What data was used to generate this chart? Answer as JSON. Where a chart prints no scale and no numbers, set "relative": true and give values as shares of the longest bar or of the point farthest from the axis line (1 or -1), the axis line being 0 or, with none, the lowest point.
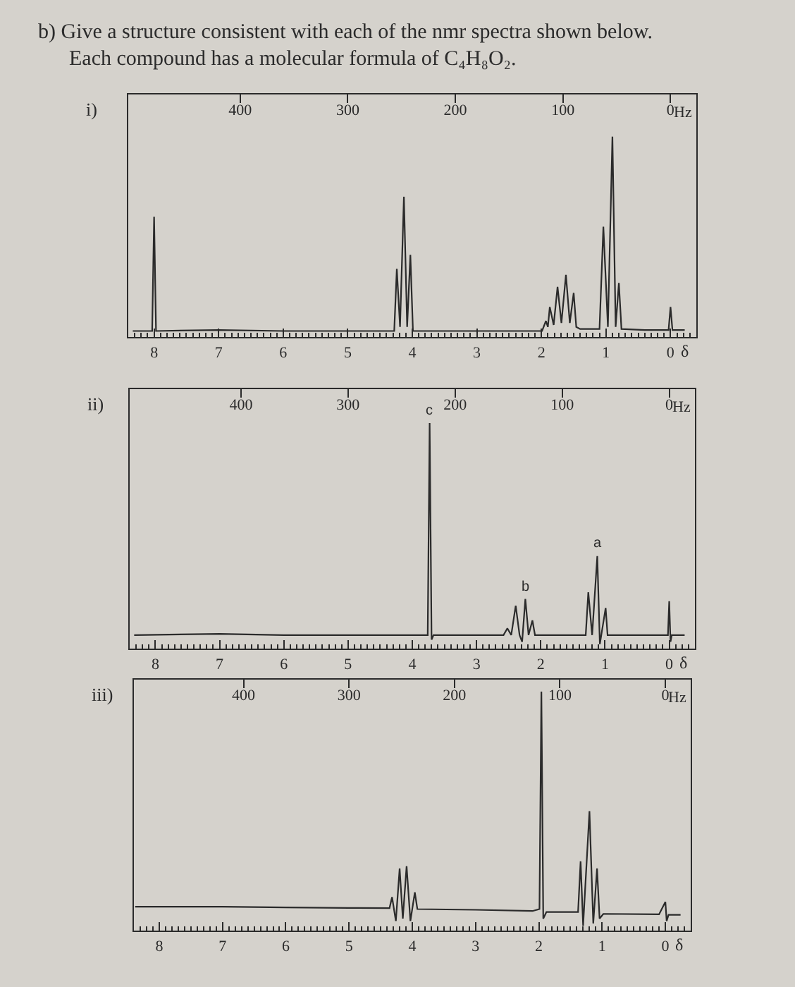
{
  "chart_data": [
    {
      "type": "other",
      "title": "b) Give a structure consistent with each of the nmr spectra shown below.",
      "subtitle": "Each compound has a molecular formula of C₄H₈O₂."
    },
    {
      "type": "line",
      "title": "i)",
      "xlabel": "δ",
      "x2label": "Hz",
      "relative": true,
      "xlim": [
        8.4,
        -0.4
      ],
      "xticks": [
        8,
        7,
        6,
        5,
        4,
        3,
        2,
        1,
        0,
        {
          "value": 8.3,
          "label": null
        },
        {
          "value": 8.2,
          "label": null
        },
        {
          "value": 8.1,
          "label": null
        },
        {
          "value": 7.9,
          "label": null
        },
        {
          "value": 7.8,
          "label": null
        },
        {
          "value": 7.7,
          "label": null
        },
        {
          "value": 7.6,
          "label": null
        },
        {
          "value": 7.5,
          "label": null
        },
        {
          "value": 7.4,
          "label": null
        },
        {
          "value": 7.3,
          "label": null
        },
        {
          "value": 7.2,
          "label": null
        },
        {
          "value": 7.1,
          "label": null
        },
        {
          "value": 6.9,
          "label": null
        },
        {
          "value": 6.8,
          "label": null
        },
        {
          "value": 6.7,
          "label": null
        },
        {
          "value": 6.6,
          "label": null
        },
        {
          "value": 6.5,
          "label": null
        },
        {
          "value": 6.4,
          "label": null
        },
        {
          "value": 6.3,
          "label": null
        },
        {
          "value": 6.2,
          "label": null
        },
        {
          "value": 6.1,
          "label": null
        },
        {
          "value": 5.9,
          "label": null
        },
        {
          "value": 5.8,
          "label": null
        },
        {
          "value": 5.7,
          "label": null
        },
        {
          "value": 5.6,
          "label": null
        },
        {
          "value": 5.5,
          "label": null
        },
        {
          "value": 5.4,
          "label": null
        },
        {
          "value": 5.3,
          "label": null
        },
        {
          "value": 5.2,
          "label": null
        },
        {
          "value": 5.1,
          "label": null
        },
        {
          "value": 4.9,
          "label": null
        },
        {
          "value": 4.8,
          "label": null
        },
        {
          "value": 4.7,
          "label": null
        },
        {
          "value": 4.6,
          "label": null
        },
        {
          "value": 4.5,
          "label": null
        },
        {
          "value": 4.4,
          "label": null
        },
        {
          "value": 4.3,
          "label": null
        },
        {
          "value": 4.2,
          "label": null
        },
        {
          "value": 4.1,
          "label": null
        },
        {
          "value": 3.9,
          "label": null
        },
        {
          "value": 3.8,
          "label": null
        },
        {
          "value": 3.7,
          "label": null
        },
        {
          "value": 3.6,
          "label": null
        },
        {
          "value": 3.5,
          "label": null
        },
        {
          "value": 3.4,
          "label": null
        },
        {
          "value": 3.3,
          "label": null
        },
        {
          "value": 3.2,
          "label": null
        },
        {
          "value": 3.1,
          "label": null
        },
        {
          "value": 2.9,
          "label": null
        },
        {
          "value": 2.8,
          "label": null
        },
        {
          "value": 2.7,
          "label": null
        },
        {
          "value": 2.6,
          "label": null
        },
        {
          "value": 2.5,
          "label": null
        },
        {
          "value": 2.4,
          "label": null
        },
        {
          "value": 2.3,
          "label": null
        },
        {
          "value": 2.2,
          "label": null
        },
        {
          "value": 2.1,
          "label": null
        },
        {
          "value": 1.9,
          "label": null
        },
        {
          "value": 1.8,
          "label": null
        },
        {
          "value": 1.7,
          "label": null
        },
        {
          "value": 1.6,
          "label": null
        },
        {
          "value": 1.5,
          "label": null
        },
        {
          "value": 1.4,
          "label": null
        },
        {
          "value": 1.3,
          "label": null
        },
        {
          "value": 1.2,
          "label": null
        },
        {
          "value": 1.1,
          "label": null
        },
        {
          "value": 0.9,
          "label": null
        },
        {
          "value": 0.8,
          "label": null
        },
        {
          "value": 0.7,
          "label": null
        },
        {
          "value": 0.6,
          "label": null
        },
        {
          "value": 0.5,
          "label": null
        },
        {
          "value": 0.4,
          "label": null
        },
        {
          "value": 0.3,
          "label": null
        },
        {
          "value": 0.2,
          "label": null
        },
        {
          "value": 0.1,
          "label": null
        },
        {
          "value": -0.1,
          "label": null
        },
        {
          "value": -0.2,
          "label": null
        },
        {
          "value": -0.3,
          "label": null
        }
      ],
      "x2lim": [
        504,
        -24
      ],
      "x2ticks": [
        400,
        300,
        200,
        100,
        0
      ],
      "line_style": "solid",
      "series": [
        {
          "color": "#2b2b2b",
          "x": [
            8.33,
            8.03,
            8.0,
            7.97,
            7.0,
            6.0,
            5.0,
            4.28,
            4.24,
            4.19,
            4.13,
            4.08,
            4.03,
            3.99,
            3.0,
            1.99,
            1.93,
            1.9,
            1.87,
            1.81,
            1.75,
            1.69,
            1.62,
            1.56,
            1.5,
            1.46,
            1.4,
            1.1,
            1.04,
            0.97,
            0.9,
            0.85,
            0.8,
            0.76,
            0.4,
            0.03,
            0.0,
            -0.03,
            -0.22
          ],
          "values": [
            0.03,
            0.03,
            0.6,
            0.03,
            0.035,
            0.03,
            0.03,
            0.03,
            0.34,
            0.05,
            0.7,
            0.05,
            0.41,
            0.03,
            0.03,
            0.03,
            0.08,
            0.05,
            0.15,
            0.06,
            0.25,
            0.07,
            0.31,
            0.07,
            0.22,
            0.05,
            0.04,
            0.04,
            0.55,
            0.05,
            1.0,
            0.05,
            0.27,
            0.04,
            0.035,
            0.035,
            0.15,
            0.035,
            0.035
          ]
        }
      ]
    },
    {
      "type": "line",
      "title": "ii)",
      "xlabel": "δ",
      "x2label": "Hz",
      "relative": true,
      "xlim": [
        8.4,
        -0.4
      ],
      "xticks": [
        8,
        7,
        6,
        5,
        4,
        3,
        2,
        1,
        0,
        {
          "value": 8.3,
          "label": null
        },
        {
          "value": 8.2,
          "label": null
        },
        {
          "value": 8.1,
          "label": null
        },
        {
          "value": 7.9,
          "label": null
        },
        {
          "value": 7.8,
          "label": null
        },
        {
          "value": 7.7,
          "label": null
        },
        {
          "value": 7.6,
          "label": null
        },
        {
          "value": 7.5,
          "label": null
        },
        {
          "value": 7.4,
          "label": null
        },
        {
          "value": 7.3,
          "label": null
        },
        {
          "value": 7.2,
          "label": null
        },
        {
          "value": 7.1,
          "label": null
        },
        {
          "value": 6.9,
          "label": null
        },
        {
          "value": 6.8,
          "label": null
        },
        {
          "value": 6.7,
          "label": null
        },
        {
          "value": 6.6,
          "label": null
        },
        {
          "value": 6.5,
          "label": null
        },
        {
          "value": 6.4,
          "label": null
        },
        {
          "value": 6.3,
          "label": null
        },
        {
          "value": 6.2,
          "label": null
        },
        {
          "value": 6.1,
          "label": null
        },
        {
          "value": 5.9,
          "label": null
        },
        {
          "value": 5.8,
          "label": null
        },
        {
          "value": 5.7,
          "label": null
        },
        {
          "value": 5.6,
          "label": null
        },
        {
          "value": 5.5,
          "label": null
        },
        {
          "value": 5.4,
          "label": null
        },
        {
          "value": 5.3,
          "label": null
        },
        {
          "value": 5.2,
          "label": null
        },
        {
          "value": 5.1,
          "label": null
        },
        {
          "value": 4.9,
          "label": null
        },
        {
          "value": 4.8,
          "label": null
        },
        {
          "value": 4.7,
          "label": null
        },
        {
          "value": 4.6,
          "label": null
        },
        {
          "value": 4.5,
          "label": null
        },
        {
          "value": 4.4,
          "label": null
        },
        {
          "value": 4.3,
          "label": null
        },
        {
          "value": 4.2,
          "label": null
        },
        {
          "value": 4.1,
          "label": null
        },
        {
          "value": 3.9,
          "label": null
        },
        {
          "value": 3.8,
          "label": null
        },
        {
          "value": 3.7,
          "label": null
        },
        {
          "value": 3.6,
          "label": null
        },
        {
          "value": 3.5,
          "label": null
        },
        {
          "value": 3.4,
          "label": null
        },
        {
          "value": 3.3,
          "label": null
        },
        {
          "value": 3.2,
          "label": null
        },
        {
          "value": 3.1,
          "label": null
        },
        {
          "value": 2.9,
          "label": null
        },
        {
          "value": 2.8,
          "label": null
        },
        {
          "value": 2.7,
          "label": null
        },
        {
          "value": 2.6,
          "label": null
        },
        {
          "value": 2.5,
          "label": null
        },
        {
          "value": 2.4,
          "label": null
        },
        {
          "value": 2.3,
          "label": null
        },
        {
          "value": 2.2,
          "label": null
        },
        {
          "value": 2.1,
          "label": null
        },
        {
          "value": 1.9,
          "label": null
        },
        {
          "value": 1.8,
          "label": null
        },
        {
          "value": 1.7,
          "label": null
        },
        {
          "value": 1.6,
          "label": null
        },
        {
          "value": 1.5,
          "label": null
        },
        {
          "value": 1.4,
          "label": null
        },
        {
          "value": 1.3,
          "label": null
        },
        {
          "value": 1.2,
          "label": null
        },
        {
          "value": 1.1,
          "label": null
        },
        {
          "value": 0.9,
          "label": null
        },
        {
          "value": 0.8,
          "label": null
        },
        {
          "value": 0.7,
          "label": null
        },
        {
          "value": 0.6,
          "label": null
        },
        {
          "value": 0.5,
          "label": null
        },
        {
          "value": 0.4,
          "label": null
        },
        {
          "value": 0.3,
          "label": null
        },
        {
          "value": 0.2,
          "label": null
        },
        {
          "value": 0.1,
          "label": null
        },
        {
          "value": -0.1,
          "label": null
        },
        {
          "value": -0.2,
          "label": null
        },
        {
          "value": -0.3,
          "label": null
        }
      ],
      "x2lim": [
        504,
        -24
      ],
      "x2ticks": [
        400,
        300,
        200,
        100,
        0
      ],
      "line_style": "solid",
      "annotations": [
        {
          "text": "c",
          "x": 3.73,
          "y": 1.0
        },
        {
          "text": "b",
          "x": 2.24,
          "y": 0.22
        },
        {
          "text": "a",
          "x": 1.12,
          "y": 0.41
        }
      ],
      "series": [
        {
          "color": "#2b2b2b",
          "x": [
            8.33,
            7.0,
            6.0,
            5.0,
            4.0,
            3.76,
            3.73,
            3.7,
            3.67,
            3.0,
            2.58,
            2.52,
            2.46,
            2.39,
            2.33,
            2.29,
            2.24,
            2.19,
            2.13,
            2.09,
            1.3,
            1.26,
            1.2,
            1.12,
            1.08,
            0.99,
            0.96,
            0.2,
            0.02,
            0.0,
            -0.02,
            -0.04,
            -0.24
          ],
          "values": [
            0.06,
            0.065,
            0.06,
            0.06,
            0.06,
            0.06,
            1.0,
            0.04,
            0.06,
            0.06,
            0.06,
            0.09,
            0.06,
            0.19,
            0.06,
            0.03,
            0.22,
            0.06,
            0.125,
            0.06,
            0.06,
            0.25,
            0.06,
            0.41,
            0.02,
            0.18,
            0.06,
            0.06,
            0.06,
            0.21,
            0.03,
            0.06,
            0.06
          ]
        }
      ]
    },
    {
      "type": "line",
      "title": "iii)",
      "xlabel": "δ",
      "x2label": "Hz",
      "relative": true,
      "xlim": [
        8.4,
        -0.4
      ],
      "xticks": [
        8,
        7,
        6,
        5,
        4,
        3,
        2,
        1,
        0,
        {
          "value": 8.3,
          "label": null
        },
        {
          "value": 8.2,
          "label": null
        },
        {
          "value": 8.1,
          "label": null
        },
        {
          "value": 7.9,
          "label": null
        },
        {
          "value": 7.8,
          "label": null
        },
        {
          "value": 7.7,
          "label": null
        },
        {
          "value": 7.6,
          "label": null
        },
        {
          "value": 7.5,
          "label": null
        },
        {
          "value": 7.4,
          "label": null
        },
        {
          "value": 7.3,
          "label": null
        },
        {
          "value": 7.2,
          "label": null
        },
        {
          "value": 7.1,
          "label": null
        },
        {
          "value": 6.9,
          "label": null
        },
        {
          "value": 6.8,
          "label": null
        },
        {
          "value": 6.7,
          "label": null
        },
        {
          "value": 6.6,
          "label": null
        },
        {
          "value": 6.5,
          "label": null
        },
        {
          "value": 6.4,
          "label": null
        },
        {
          "value": 6.3,
          "label": null
        },
        {
          "value": 6.2,
          "label": null
        },
        {
          "value": 6.1,
          "label": null
        },
        {
          "value": 5.9,
          "label": null
        },
        {
          "value": 5.8,
          "label": null
        },
        {
          "value": 5.7,
          "label": null
        },
        {
          "value": 5.6,
          "label": null
        },
        {
          "value": 5.5,
          "label": null
        },
        {
          "value": 5.4,
          "label": null
        },
        {
          "value": 5.3,
          "label": null
        },
        {
          "value": 5.2,
          "label": null
        },
        {
          "value": 5.1,
          "label": null
        },
        {
          "value": 4.9,
          "label": null
        },
        {
          "value": 4.8,
          "label": null
        },
        {
          "value": 4.7,
          "label": null
        },
        {
          "value": 4.6,
          "label": null
        },
        {
          "value": 4.5,
          "label": null
        },
        {
          "value": 4.4,
          "label": null
        },
        {
          "value": 4.3,
          "label": null
        },
        {
          "value": 4.2,
          "label": null
        },
        {
          "value": 4.1,
          "label": null
        },
        {
          "value": 3.9,
          "label": null
        },
        {
          "value": 3.8,
          "label": null
        },
        {
          "value": 3.7,
          "label": null
        },
        {
          "value": 3.6,
          "label": null
        },
        {
          "value": 3.5,
          "label": null
        },
        {
          "value": 3.4,
          "label": null
        },
        {
          "value": 3.3,
          "label": null
        },
        {
          "value": 3.2,
          "label": null
        },
        {
          "value": 3.1,
          "label": null
        },
        {
          "value": 2.9,
          "label": null
        },
        {
          "value": 2.8,
          "label": null
        },
        {
          "value": 2.7,
          "label": null
        },
        {
          "value": 2.6,
          "label": null
        },
        {
          "value": 2.5,
          "label": null
        },
        {
          "value": 2.4,
          "label": null
        },
        {
          "value": 2.3,
          "label": null
        },
        {
          "value": 2.2,
          "label": null
        },
        {
          "value": 2.1,
          "label": null
        },
        {
          "value": 1.9,
          "label": null
        },
        {
          "value": 1.8,
          "label": null
        },
        {
          "value": 1.7,
          "label": null
        },
        {
          "value": 1.6,
          "label": null
        },
        {
          "value": 1.5,
          "label": null
        },
        {
          "value": 1.4,
          "label": null
        },
        {
          "value": 1.3,
          "label": null
        },
        {
          "value": 1.2,
          "label": null
        },
        {
          "value": 1.1,
          "label": null
        },
        {
          "value": 0.9,
          "label": null
        },
        {
          "value": 0.8,
          "label": null
        },
        {
          "value": 0.7,
          "label": null
        },
        {
          "value": 0.6,
          "label": null
        },
        {
          "value": 0.5,
          "label": null
        },
        {
          "value": 0.4,
          "label": null
        },
        {
          "value": 0.3,
          "label": null
        },
        {
          "value": 0.2,
          "label": null
        },
        {
          "value": 0.1,
          "label": null
        },
        {
          "value": -0.1,
          "label": null
        },
        {
          "value": -0.2,
          "label": null
        },
        {
          "value": -0.3,
          "label": null
        }
      ],
      "x2lim": [
        504,
        -24
      ],
      "x2ticks": [
        400,
        300,
        200,
        100,
        0
      ],
      "line_style": "solid",
      "series": [
        {
          "color": "#2b2b2b",
          "x": [
            8.38,
            7.0,
            6.0,
            5.0,
            4.36,
            4.32,
            4.26,
            4.2,
            4.15,
            4.09,
            4.03,
            3.96,
            3.92,
            3.0,
            2.1,
            1.99,
            1.96,
            1.93,
            1.88,
            1.38,
            1.34,
            1.3,
            1.2,
            1.14,
            1.08,
            1.04,
            0.98,
            0.1,
            0.0,
            -0.02,
            -0.05,
            -0.24
          ],
          "values": [
            0.1,
            0.1,
            0.097,
            0.095,
            0.094,
            0.14,
            0.04,
            0.26,
            0.05,
            0.27,
            0.04,
            0.16,
            0.09,
            0.087,
            0.082,
            0.09,
            1.0,
            0.05,
            0.078,
            0.078,
            0.29,
            0.02,
            0.5,
            0.03,
            0.26,
            0.05,
            0.07,
            0.068,
            0.12,
            0.04,
            0.066,
            0.066
          ]
        }
      ]
    }
  ]
}
